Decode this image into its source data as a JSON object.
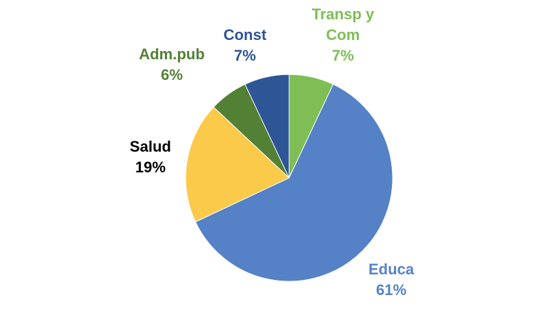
{
  "chart_data": {
    "type": "pie",
    "title": "",
    "start_angle_deg": 0,
    "direction": "clockwise",
    "slices": [
      {
        "label": [
          "Transp y",
          "Com"
        ],
        "value": 7,
        "percent_label": "7%",
        "color": "#7ebe55",
        "label_color": "#7ebe55"
      },
      {
        "label": [
          "Educa"
        ],
        "value": 61,
        "percent_label": "61%",
        "color": "#5581c6",
        "label_color": "#5581c6"
      },
      {
        "label": [
          "Salud"
        ],
        "value": 19,
        "percent_label": "19%",
        "color": "#fbca4a",
        "label_color": "#000000"
      },
      {
        "label": [
          "Adm.pub"
        ],
        "value": 6,
        "percent_label": "6%",
        "color": "#528035",
        "label_color": "#528035"
      },
      {
        "label": [
          "Const"
        ],
        "value": 7,
        "percent_label": "7%",
        "color": "#2e5596",
        "label_color": "#2e5596"
      }
    ]
  }
}
